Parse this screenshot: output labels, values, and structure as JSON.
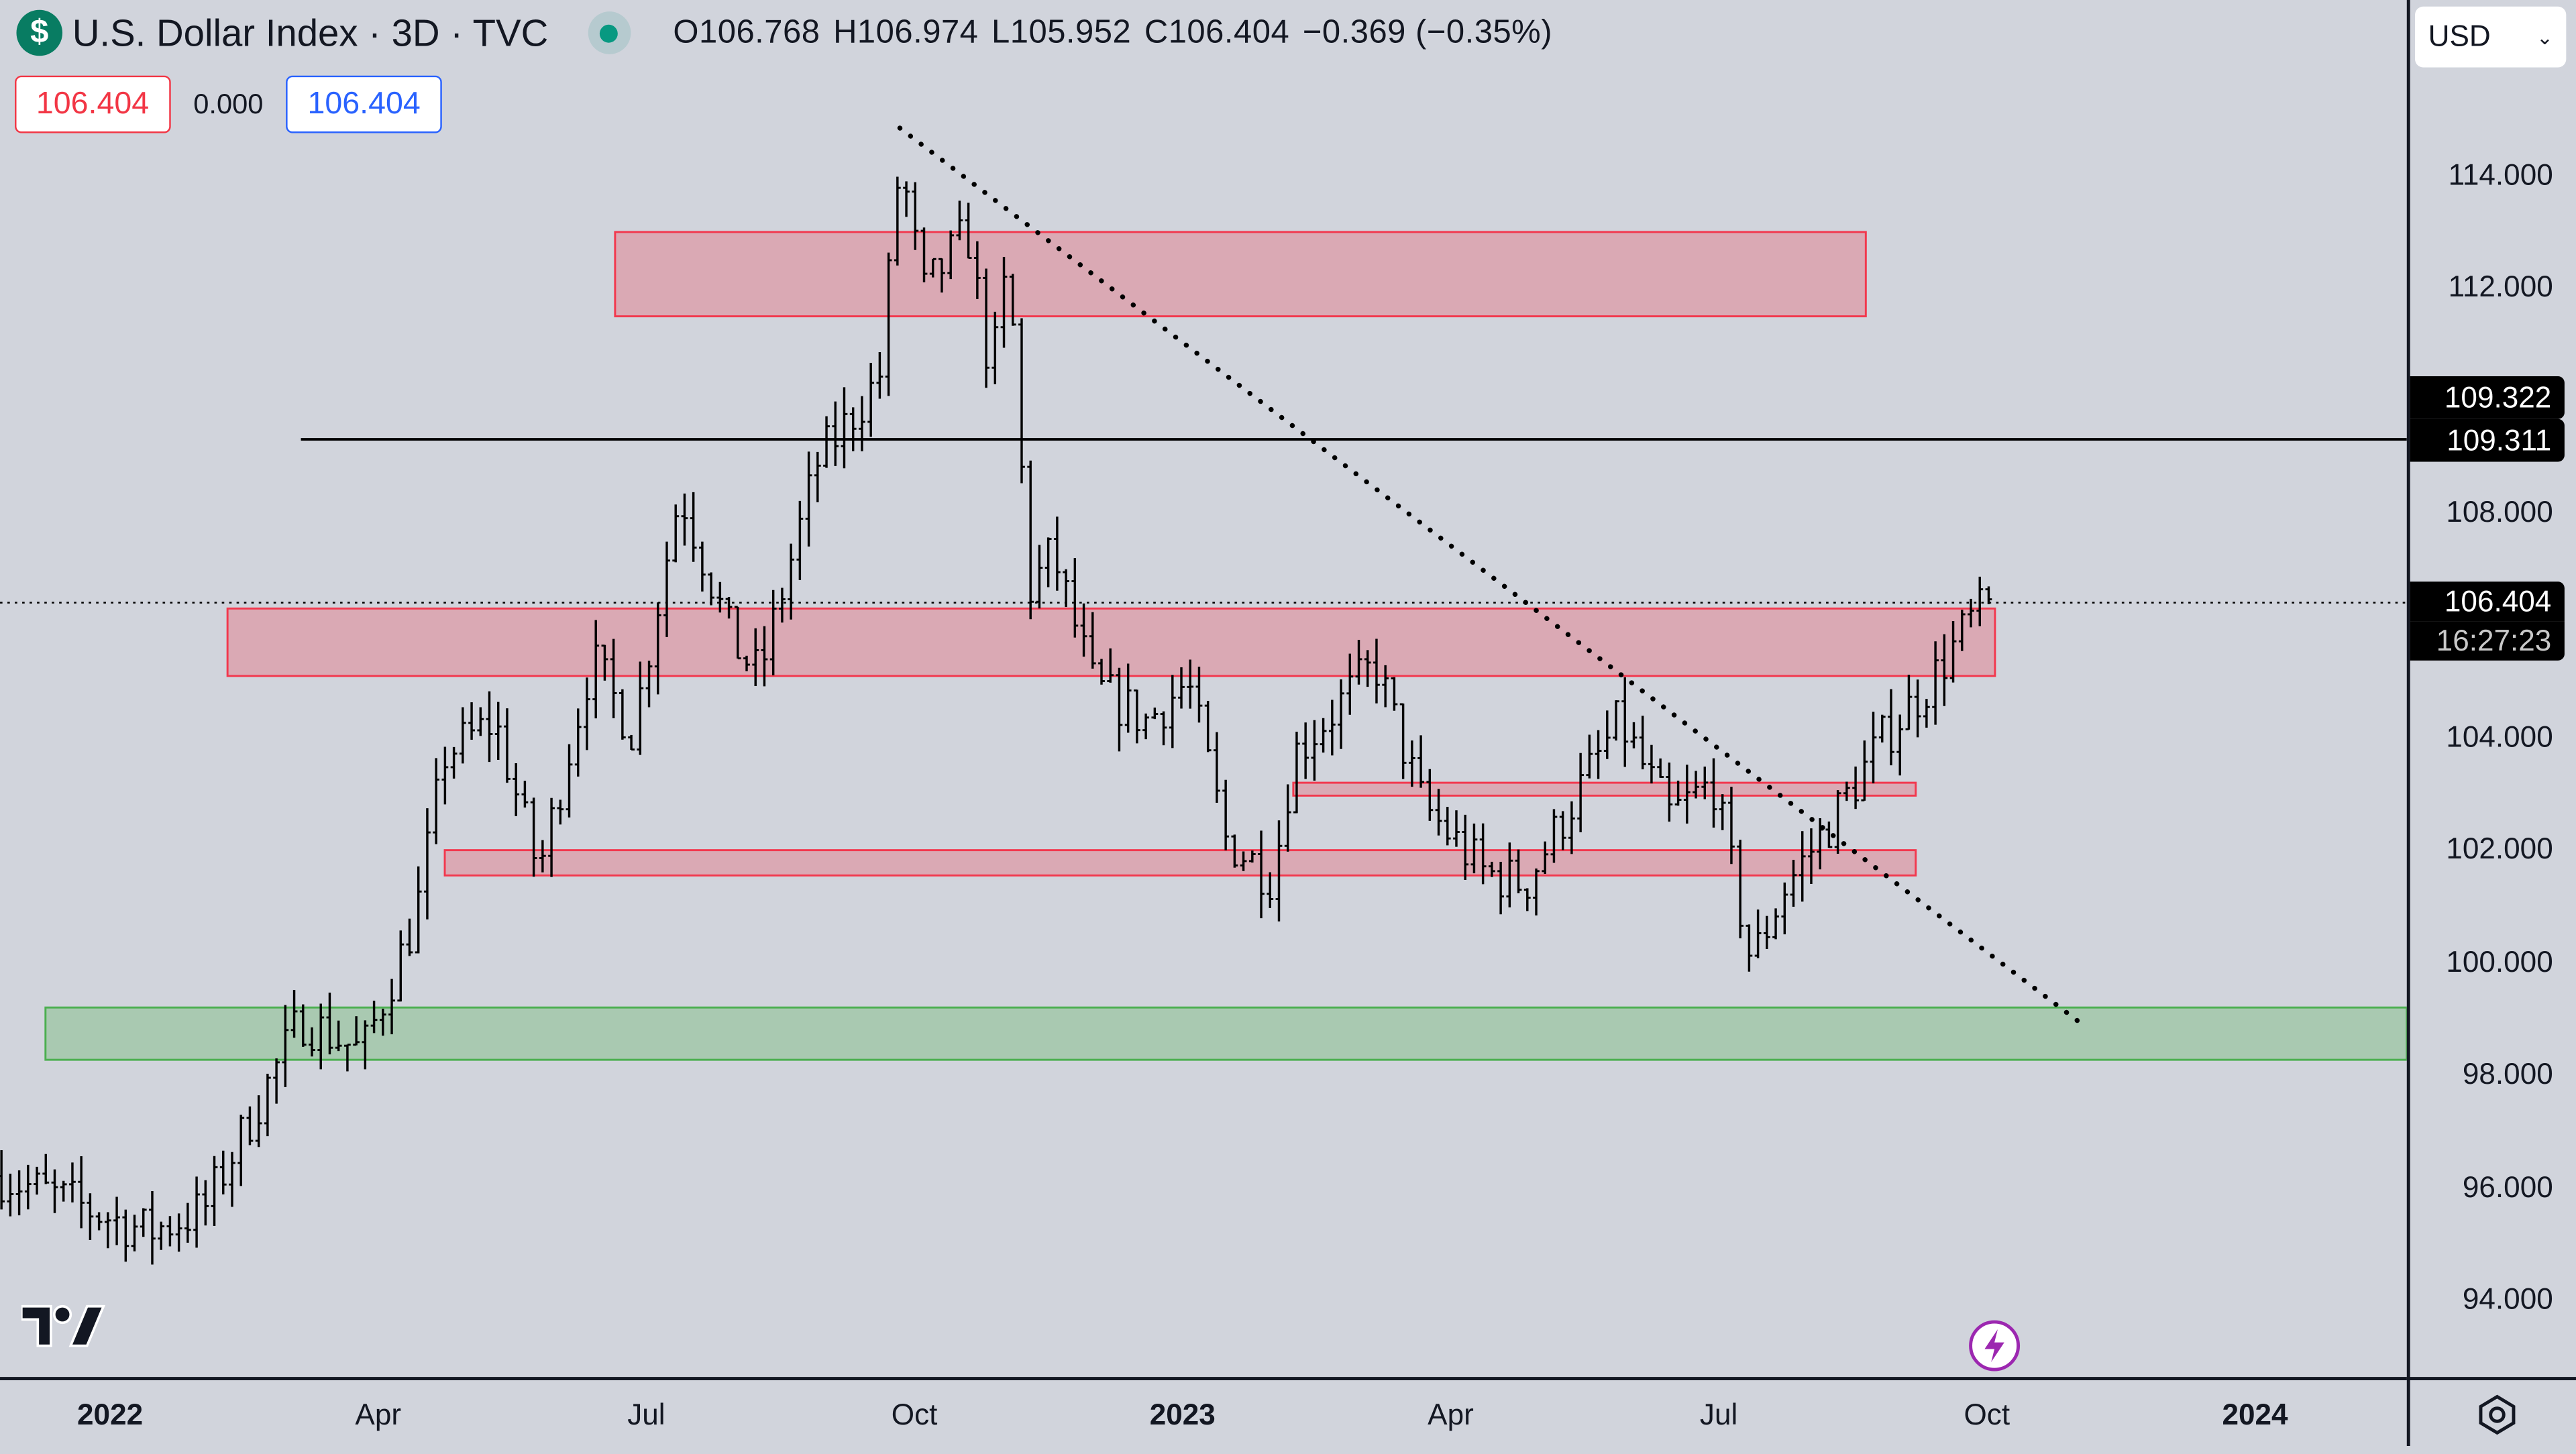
{
  "header": {
    "symbol_icon": "$",
    "title": "U.S. Dollar Index · 3D · TVC",
    "open": "O106.768",
    "high": "H106.974",
    "low": "L105.952",
    "close": "C106.404",
    "change": "−0.369 (−0.35%)"
  },
  "trade": {
    "sell": "106.404",
    "spread": "0.000",
    "buy": "106.404"
  },
  "currency": {
    "selected": "USD"
  },
  "price_axis": {
    "ticks": [
      "114.000",
      "112.000",
      "108.000",
      "104.000",
      "102.000",
      "100.000",
      "98.000",
      "96.000",
      "94.000"
    ],
    "tick_values": [
      114,
      112,
      108,
      104,
      102,
      100,
      98,
      96,
      94
    ],
    "hline_label_top": "109.322",
    "hline_label": "109.311",
    "last_price": "106.404",
    "countdown": "16:27:23"
  },
  "time_axis": {
    "labels": [
      {
        "t": "2022",
        "y": true,
        "m": 0
      },
      {
        "t": "Apr",
        "m": 3
      },
      {
        "t": "Jul",
        "m": 6
      },
      {
        "t": "Oct",
        "m": 9
      },
      {
        "t": "2023",
        "y": true,
        "m": 12
      },
      {
        "t": "Apr",
        "m": 15
      },
      {
        "t": "Jul",
        "m": 18
      },
      {
        "t": "Oct",
        "m": 21
      },
      {
        "t": "2024",
        "y": true,
        "m": 24
      }
    ]
  },
  "colors": {
    "zone_red": "#f2384e",
    "zone_green": "#4caf50",
    "bar": "#000000",
    "background": "#d1d4dc"
  },
  "chart_data": {
    "type": "ohlc",
    "last": 106.404,
    "path": [
      [
        "2021-11-25",
        96.2
      ],
      [
        "2022-01-14",
        95.2
      ],
      [
        "2022-02-02",
        95.6
      ],
      [
        "2022-03-07",
        99.0
      ],
      [
        "2022-03-28",
        98.4
      ],
      [
        "2022-04-15",
        100.8
      ],
      [
        "2022-04-25",
        103.7
      ],
      [
        "2022-05-12",
        104.3
      ],
      [
        "2022-05-27",
        101.6
      ],
      [
        "2022-06-14",
        105.4
      ],
      [
        "2022-06-28",
        104.1
      ],
      [
        "2022-07-14",
        108.4
      ],
      [
        "2022-08-01",
        105.7
      ],
      [
        "2022-08-10",
        105.1
      ],
      [
        "2022-08-30",
        108.9
      ],
      [
        "2022-09-20",
        110.4
      ],
      [
        "2022-09-27",
        114.3
      ],
      [
        "2022-10-05",
        111.9
      ],
      [
        "2022-10-20",
        113.0
      ],
      [
        "2022-10-28",
        110.4
      ],
      [
        "2022-11-03",
        112.5
      ],
      [
        "2022-11-10",
        106.6
      ],
      [
        "2022-11-18",
        107.3
      ],
      [
        "2022-12-02",
        104.9
      ],
      [
        "2022-12-20",
        104.3
      ],
      [
        "2023-01-03",
        105.0
      ],
      [
        "2023-01-16",
        102.2
      ],
      [
        "2023-02-01",
        101.5
      ],
      [
        "2023-02-08",
        103.7
      ],
      [
        "2023-03-08",
        105.3
      ],
      [
        "2023-03-24",
        102.8
      ],
      [
        "2023-04-14",
        101.6
      ],
      [
        "2023-04-28",
        101.4
      ],
      [
        "2023-05-30",
        104.3
      ],
      [
        "2023-06-16",
        102.6
      ],
      [
        "2023-07-01",
        103.2
      ],
      [
        "2023-07-14",
        100.0
      ],
      [
        "2023-07-25",
        101.3
      ],
      [
        "2023-08-10",
        102.5
      ],
      [
        "2023-08-28",
        104.0
      ],
      [
        "2023-09-13",
        105.0
      ],
      [
        "2023-09-27",
        106.1
      ],
      [
        "2023-10-05",
        106.4
      ]
    ],
    "zones": [
      {
        "color": "red",
        "from": "2022-06-22",
        "to": "2023-08-22",
        "low": 111.5,
        "high": 113.0
      },
      {
        "color": "red",
        "from": "2022-02-10",
        "to": "2023-10-05",
        "low": 105.1,
        "high": 106.3
      },
      {
        "color": "red",
        "from": "2023-02-08",
        "to": "2023-09-08",
        "low": 102.97,
        "high": 103.2
      },
      {
        "color": "red",
        "from": "2022-04-25",
        "to": "2023-09-08",
        "low": 101.55,
        "high": 102.0
      },
      {
        "color": "green",
        "from": "2021-12-10",
        "to": "end",
        "low": 98.27,
        "high": 99.2
      }
    ],
    "hline": {
      "from": "2022-03-07",
      "price": 109.311
    },
    "trendline": {
      "from": [
        "2022-09-27",
        114.85
      ],
      "to": [
        "2023-11-05",
        98.85
      ]
    }
  }
}
